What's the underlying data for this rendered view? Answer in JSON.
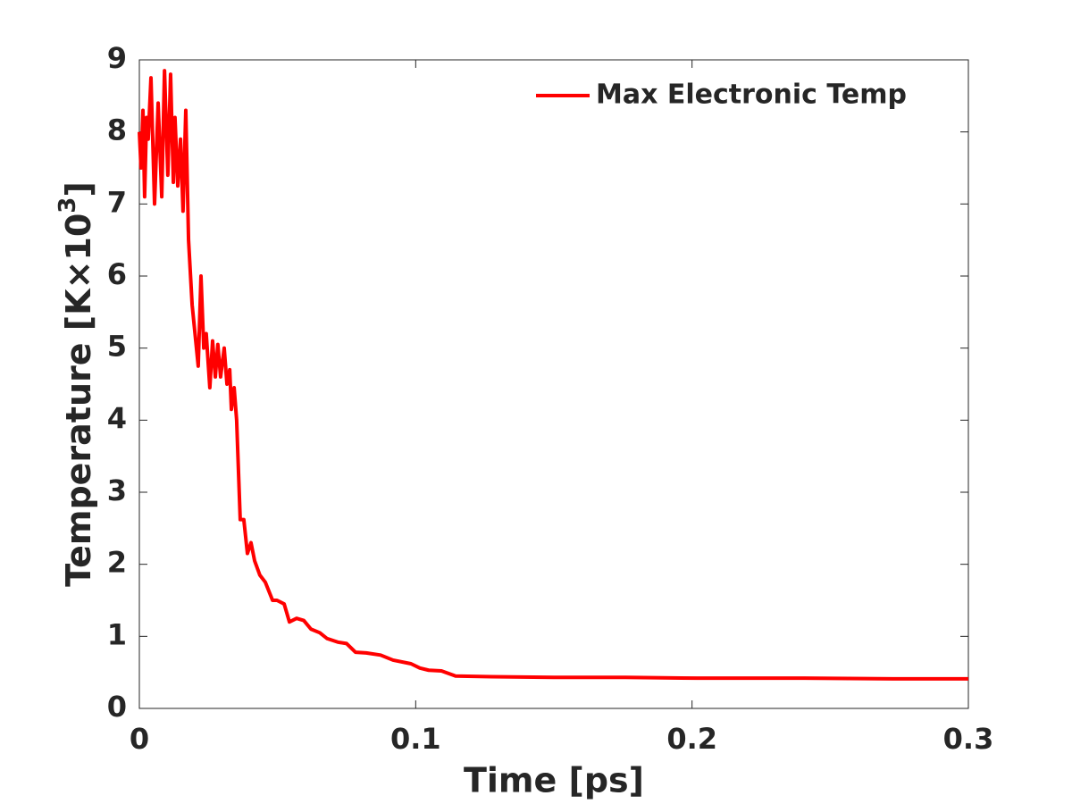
{
  "chart_data": {
    "type": "line",
    "xlabel": "Time [ps]",
    "ylabel": {
      "text": "Temperature [K×10",
      "superscript": "3",
      "suffix": "]"
    },
    "x": [
      0,
      0.0006,
      0.0013,
      0.0019,
      0.0026,
      0.0032,
      0.0042,
      0.0055,
      0.0068,
      0.0081,
      0.0091,
      0.0103,
      0.0113,
      0.0123,
      0.0129,
      0.0139,
      0.0149,
      0.0158,
      0.0168,
      0.0178,
      0.0191,
      0.0204,
      0.0213,
      0.0223,
      0.0233,
      0.0242,
      0.0255,
      0.0265,
      0.0275,
      0.0284,
      0.0294,
      0.0307,
      0.0317,
      0.0327,
      0.0333,
      0.0343,
      0.0352,
      0.0365,
      0.0378,
      0.0391,
      0.0404,
      0.0417,
      0.0436,
      0.0456,
      0.0482,
      0.0498,
      0.0524,
      0.0543,
      0.0569,
      0.0595,
      0.0621,
      0.0653,
      0.0679,
      0.0718,
      0.075,
      0.0782,
      0.0821,
      0.0873,
      0.0918,
      0.0983,
      0.1015,
      0.1047,
      0.1093,
      0.1144,
      0.1274,
      0.15,
      0.1759,
      0.2017,
      0.2405,
      0.2728,
      0.3
    ],
    "series": [
      {
        "name": "Max Electronic Temp",
        "color": "#ff0000",
        "values": [
          8.0,
          7.5,
          8.3,
          7.1,
          8.2,
          7.9,
          8.75,
          7.0,
          8.4,
          7.1,
          8.85,
          7.4,
          8.8,
          7.3,
          8.2,
          7.25,
          7.9,
          6.9,
          8.3,
          6.5,
          5.6,
          5.1,
          4.75,
          6.0,
          5.0,
          5.2,
          4.45,
          5.1,
          4.6,
          5.05,
          4.6,
          5.0,
          4.5,
          4.7,
          4.15,
          4.45,
          4.0,
          2.62,
          2.62,
          2.15,
          2.3,
          2.05,
          1.85,
          1.75,
          1.5,
          1.5,
          1.45,
          1.2,
          1.25,
          1.22,
          1.1,
          1.05,
          0.97,
          0.92,
          0.9,
          0.78,
          0.77,
          0.74,
          0.67,
          0.62,
          0.56,
          0.53,
          0.52,
          0.45,
          0.44,
          0.43,
          0.43,
          0.42,
          0.42,
          0.41,
          0.41
        ]
      }
    ],
    "xlim": [
      0,
      0.3
    ],
    "xticks": [
      0,
      0.1,
      0.2,
      0.3
    ],
    "ylim": [
      0,
      9
    ],
    "yticks": [
      0,
      1,
      2,
      3,
      4,
      5,
      6,
      7,
      8,
      9
    ],
    "grid": false,
    "legend": "upper right"
  }
}
